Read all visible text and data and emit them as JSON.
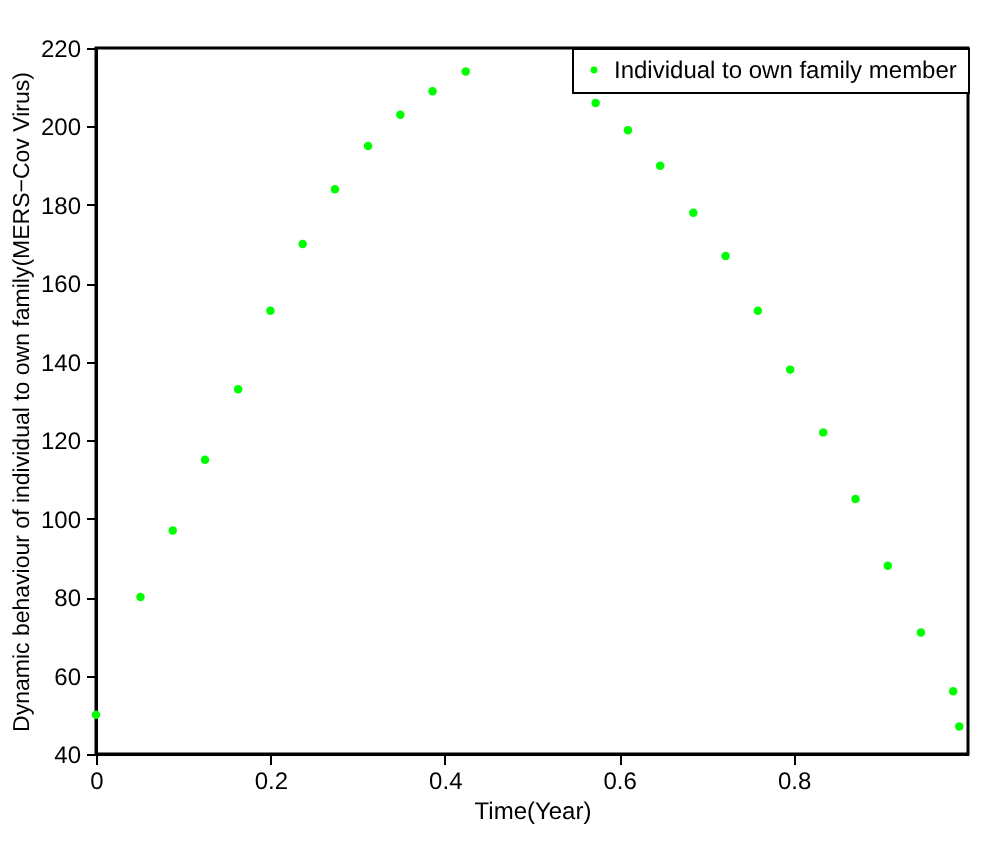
{
  "chart_data": {
    "type": "scatter",
    "xlabel": "Time(Year)",
    "ylabel": "Dynamic behaviour of individual to own family(MERS−Cov Virus)",
    "x": [
      0,
      0.051,
      0.088,
      0.125,
      0.163,
      0.2,
      0.237,
      0.274,
      0.312,
      0.349,
      0.386,
      0.424,
      0.573,
      0.61,
      0.647,
      0.685,
      0.722,
      0.759,
      0.796,
      0.834,
      0.871,
      0.908,
      0.946,
      0.983,
      0.99
    ],
    "series": [
      {
        "name": "Individual to own family member",
        "color": "#00ff00",
        "values": [
          50,
          80,
          97,
          115,
          133,
          153,
          170,
          184,
          195,
          203,
          209,
          214,
          206,
          199,
          190,
          178,
          167,
          153,
          138,
          122,
          105,
          88,
          71,
          56,
          47
        ]
      }
    ],
    "xlim": [
      0,
      1
    ],
    "xticks": [
      0,
      0.2,
      0.4,
      0.6,
      0.8
    ],
    "ylim": [
      40,
      220
    ],
    "yticks": [
      40,
      60,
      80,
      100,
      120,
      140,
      160,
      180,
      200,
      220
    ],
    "grid": false,
    "legend": "top right",
    "marker": "circle"
  }
}
